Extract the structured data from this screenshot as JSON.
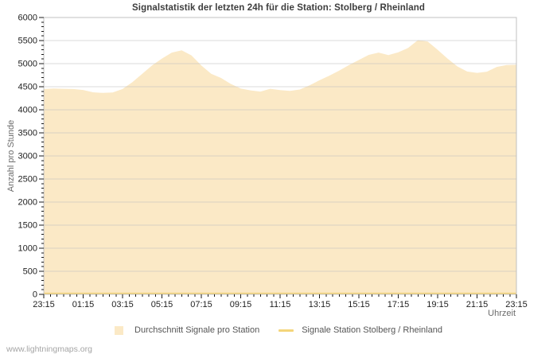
{
  "page": {
    "watermark": "www.lightningmaps.org"
  },
  "chart_data": {
    "type": "area",
    "title": "Signalstatistik der letzten 24h für die Station: Stolberg / Rheinland",
    "xlabel": "Uhrzeit",
    "ylabel": "Anzahl pro Stunde",
    "ylim": [
      0,
      6000
    ],
    "y_tick_step": 500,
    "y_minor_step": 100,
    "y_tick_values": [
      0,
      500,
      1000,
      1500,
      2000,
      2500,
      3000,
      3500,
      4000,
      4500,
      5000,
      5500,
      6000
    ],
    "x_span_hours": 24,
    "x_tick_hours": [
      0,
      2,
      4,
      6,
      8,
      10,
      12,
      14,
      16,
      18,
      20,
      22,
      24
    ],
    "x_tick_labels": [
      "23:15",
      "01:15",
      "03:15",
      "05:15",
      "07:15",
      "09:15",
      "11:15",
      "13:15",
      "15:15",
      "17:15",
      "19:15",
      "21:15",
      "23:15"
    ],
    "x_minor_per_major": 6,
    "grid": "horizontal-only",
    "legend_position": "bottom",
    "colors": {
      "area_fill": "#fbe9c6",
      "station_line": "#f4d57a",
      "grid": "#bdbdbd",
      "frame": "#c0c0c0",
      "tick": "#1a1a1a",
      "tick_label": "#222222",
      "title": "#3d3d3d",
      "axis_title": "#6b6b6b",
      "legend_text": "#555555",
      "watermark": "#a5a5a5"
    },
    "series": [
      {
        "name": "Durchschnitt Signale pro Station",
        "type": "area",
        "color": "#fbe9c6",
        "x_hours": [
          0,
          0.5,
          1,
          1.5,
          2,
          2.5,
          3,
          3.5,
          4,
          4.5,
          5,
          5.5,
          6,
          6.5,
          7,
          7.5,
          8,
          8.5,
          9,
          9.5,
          10,
          10.5,
          11,
          11.5,
          12,
          12.5,
          13,
          13.5,
          14,
          14.5,
          15,
          15.5,
          16,
          16.5,
          17,
          17.5,
          18,
          18.5,
          19,
          19.5,
          20,
          20.5,
          21,
          21.5,
          22,
          22.5,
          23,
          23.5,
          24
        ],
        "values": [
          4450,
          4460,
          4455,
          4450,
          4430,
          4380,
          4365,
          4375,
          4450,
          4600,
          4780,
          4960,
          5110,
          5240,
          5290,
          5180,
          4960,
          4780,
          4690,
          4560,
          4460,
          4420,
          4395,
          4455,
          4425,
          4410,
          4440,
          4530,
          4640,
          4740,
          4850,
          4970,
          5080,
          5190,
          5240,
          5185,
          5245,
          5340,
          5510,
          5480,
          5300,
          5110,
          4940,
          4830,
          4800,
          4825,
          4930,
          4970,
          4975
        ]
      },
      {
        "name": "Signale Station Stolberg / Rheinland",
        "type": "line",
        "color": "#f4d57a",
        "constant_value": 20
      }
    ]
  }
}
